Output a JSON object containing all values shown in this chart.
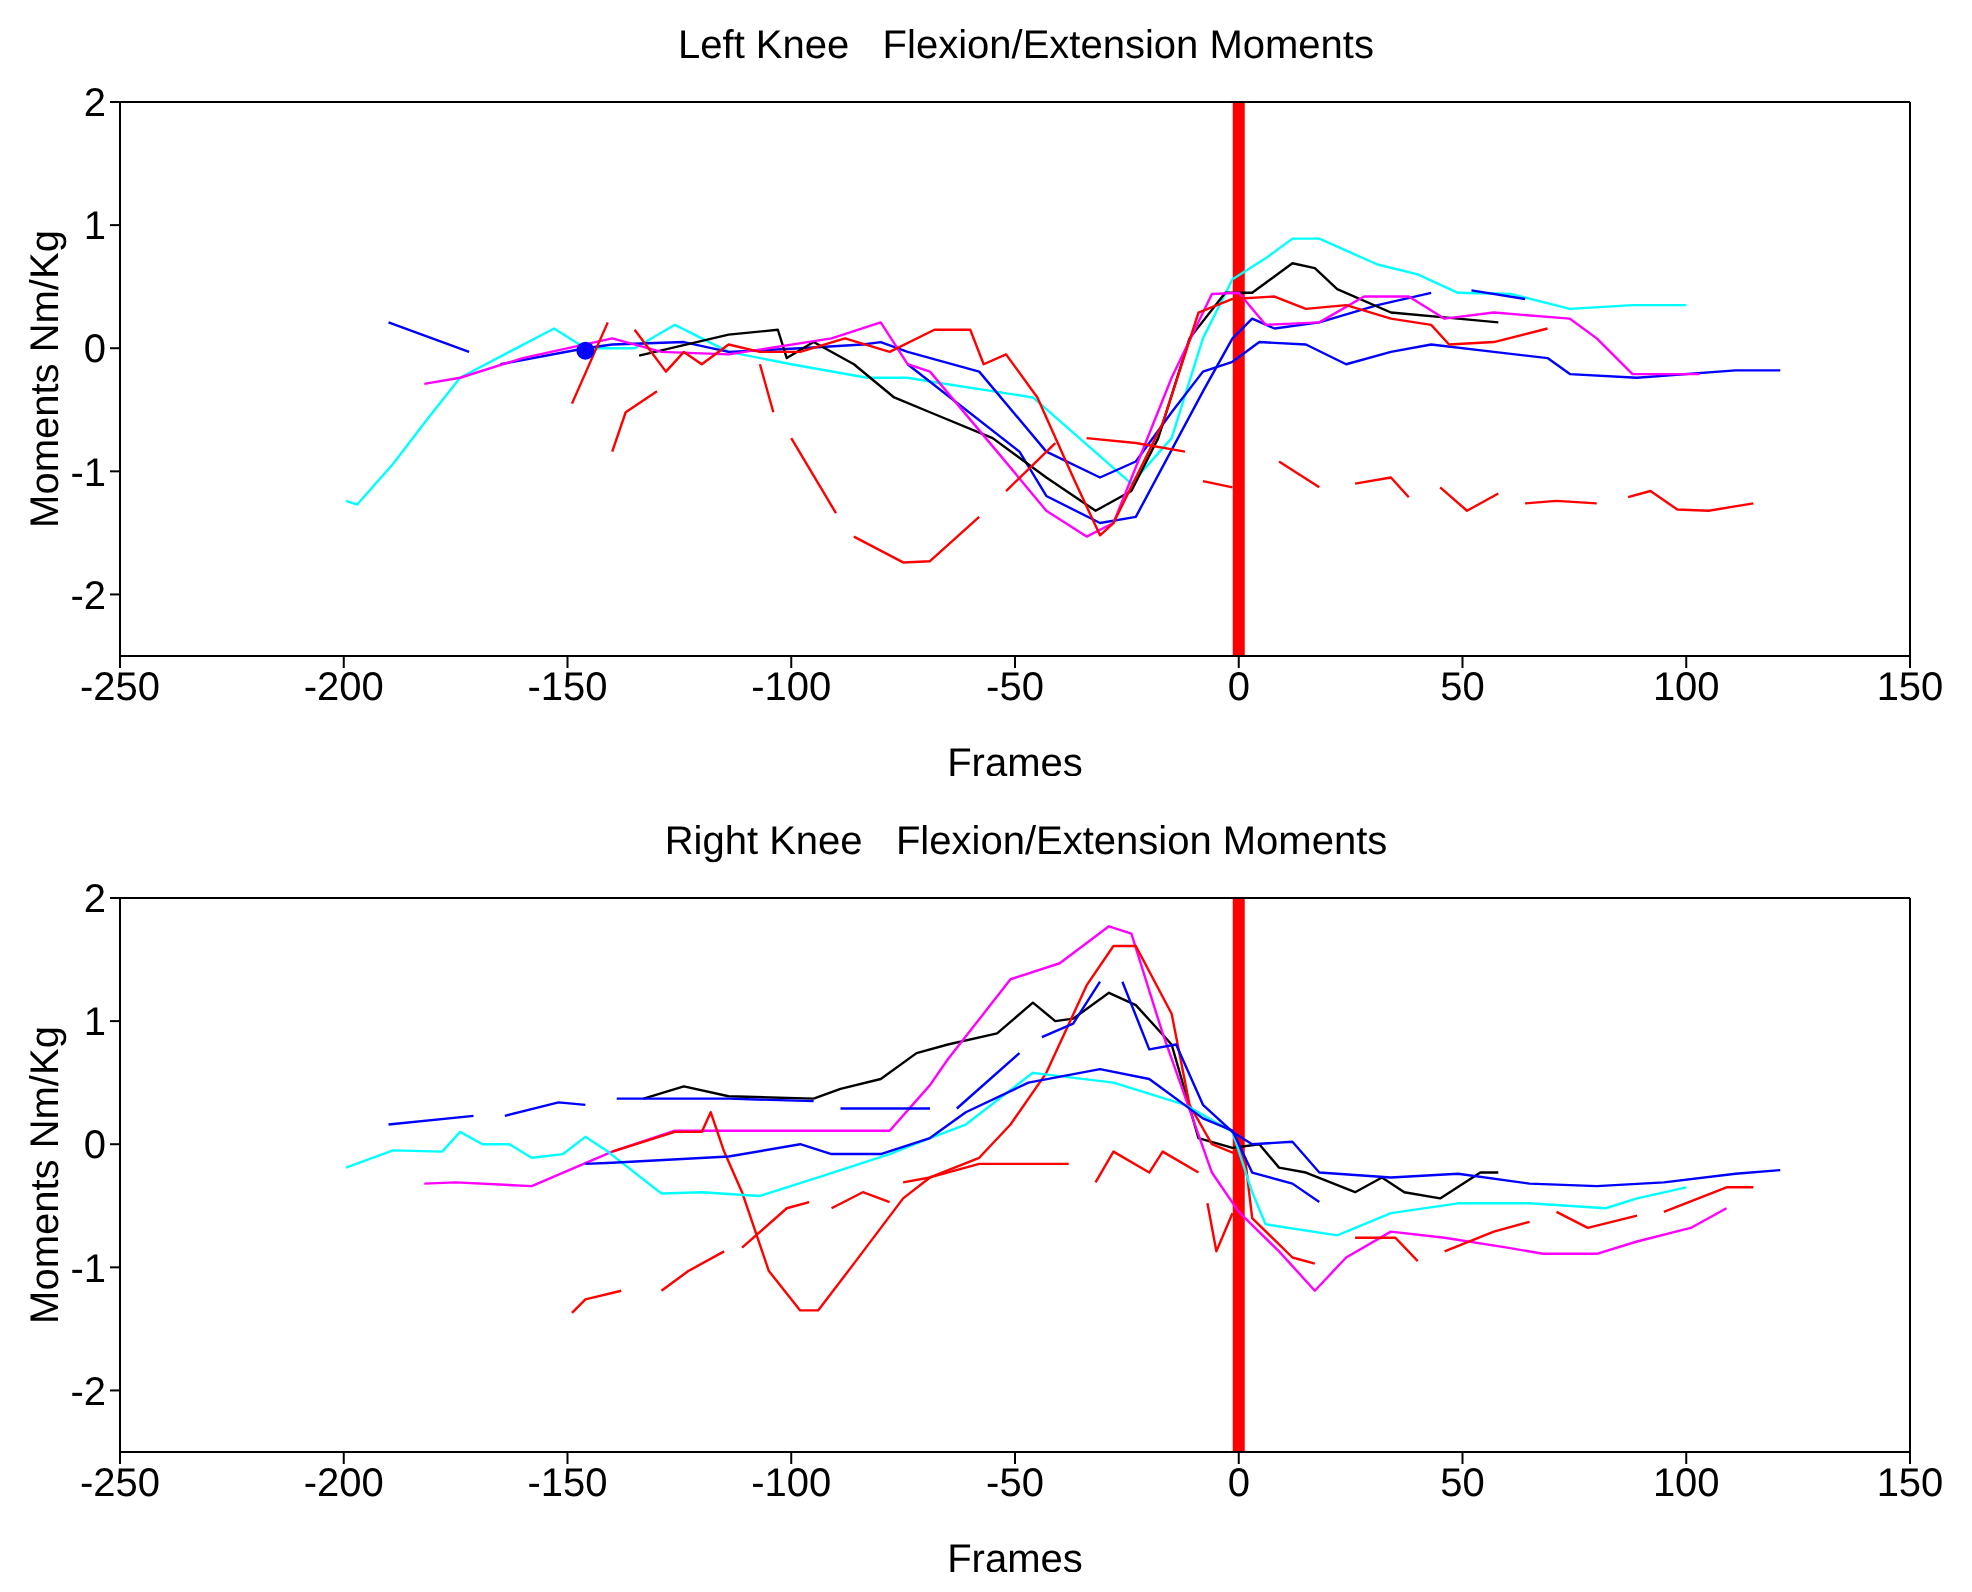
{
  "chart_data": [
    {
      "type": "line",
      "title": "Left Knee   Flexion/Extension Moments",
      "xlabel": "Frames",
      "ylabel": "Moments Nm/Kg",
      "xlim": [
        -250,
        150
      ],
      "xticks": [
        -250,
        -200,
        -150,
        -100,
        -50,
        0,
        50,
        100,
        150
      ],
      "ylim": [
        -2.5,
        2
      ],
      "yticks": [
        -2,
        -1,
        0,
        1,
        2
      ],
      "ref_lines": [
        {
          "axis": "x",
          "value": 0,
          "color": "#ff0000"
        }
      ],
      "series": [
        {
          "color": "#00ffff",
          "x": [
            -199.5,
            -197,
            -189,
            -181,
            -174,
            -163,
            -153,
            -146,
            -135,
            -126,
            -114,
            -100,
            -83,
            -74,
            -69,
            -46,
            -24,
            -15,
            -8,
            -1.4,
            6,
            12,
            18,
            31,
            40,
            49,
            61,
            74,
            88,
            100
          ],
          "values": [
            -1.24,
            -1.27,
            -0.94,
            -0.56,
            -0.24,
            -0.03,
            0.16,
            0,
            0,
            0.19,
            -0.03,
            -0.13,
            -0.24,
            -0.24,
            -0.27,
            -0.4,
            -1.1,
            -0.73,
            0.08,
            0.56,
            0.73,
            0.89,
            0.89,
            0.68,
            0.6,
            0.45,
            0.44,
            0.32,
            0.35,
            0.35
          ]
        },
        {
          "color": "#0000ff",
          "x": [
            -190,
            -172,
            -168.5,
            -165,
            -146,
            -140,
            -124,
            -114,
            -98,
            -84,
            -80,
            -74,
            -58,
            -43,
            -31,
            -23,
            -15,
            -8,
            -1.4,
            4.6,
            15,
            24,
            34,
            43,
            57,
            69,
            74,
            89,
            111,
            121
          ],
          "values": [
            0.21,
            -0.03,
            null,
            -0.13,
            0,
            0.03,
            0.05,
            -0.03,
            0,
            0.03,
            0.05,
            -0.03,
            -0.19,
            -0.84,
            -1.05,
            -0.92,
            -0.52,
            -0.19,
            -0.11,
            0.05,
            0.03,
            -0.13,
            -0.03,
            0.03,
            -0.03,
            -0.08,
            -0.21,
            -0.24,
            -0.18,
            -0.18
          ]
        },
        {
          "color": "#0000ff",
          "x": [
            -74,
            -49,
            -43,
            -31,
            -23,
            -8,
            -1.4,
            3,
            8,
            18,
            31,
            43,
            48,
            52,
            64
          ],
          "values": [
            -0.13,
            -0.84,
            -1.2,
            -1.42,
            -1.37,
            -0.35,
            0.08,
            0.24,
            0.16,
            0.21,
            0.35,
            0.45,
            null,
            0.47,
            0.4
          ]
        },
        {
          "color": "#000000",
          "x": [
            -134,
            -114,
            -103,
            -101,
            -95,
            -86,
            -77,
            -69,
            -55,
            -43,
            -32,
            -24,
            -18,
            -11,
            -3,
            3,
            12,
            17,
            22,
            34,
            49,
            58
          ],
          "values": [
            -0.06,
            0.11,
            0.15,
            -0.08,
            0.05,
            -0.13,
            -0.4,
            -0.52,
            -0.73,
            -1.05,
            -1.32,
            -1.16,
            -0.73,
            0.08,
            0.45,
            0.45,
            0.69,
            0.65,
            0.48,
            0.29,
            0.24,
            0.21
          ]
        },
        {
          "color": "#ff00ff",
          "x": [
            -182,
            -174,
            -160,
            -140,
            -129,
            -114,
            -91,
            -80,
            -74,
            -69,
            -54,
            -43,
            -34,
            -28,
            -15,
            -6,
            0,
            6,
            18,
            28,
            38,
            46,
            57,
            74,
            80,
            88,
            103
          ],
          "values": [
            -0.29,
            -0.24,
            -0.08,
            0.08,
            -0.03,
            -0.05,
            0.08,
            0.21,
            -0.13,
            -0.19,
            -0.84,
            -1.32,
            -1.53,
            -1.42,
            -0.24,
            0.44,
            0.45,
            0.19,
            0.21,
            0.42,
            0.42,
            0.24,
            0.29,
            0.24,
            0.08,
            -0.21,
            -0.21
          ]
        },
        {
          "color": "#ff0000",
          "x": [
            -135,
            -128,
            -124,
            -120,
            -114,
            -107,
            -98,
            -88,
            -78,
            -68,
            -60,
            -57,
            -52,
            -45,
            -37,
            -31,
            -28,
            -17,
            -9,
            -1.4,
            8,
            15,
            24,
            34,
            43,
            47,
            57,
            69
          ],
          "values": [
            0.15,
            -0.19,
            -0.03,
            -0.13,
            0.03,
            -0.03,
            -0.03,
            0.08,
            -0.03,
            0.15,
            0.15,
            -0.13,
            -0.05,
            -0.4,
            -1.05,
            -1.52,
            -1.42,
            -0.61,
            0.29,
            0.4,
            0.42,
            0.32,
            0.35,
            0.24,
            0.19,
            0.03,
            0.05,
            0.16
          ]
        },
        {
          "color": "#ff0000",
          "x": [
            -149,
            -141,
            -140.5,
            -140,
            -137,
            -130,
            -115,
            -107,
            -104,
            -102,
            -100,
            -90,
            -88,
            -86,
            -75,
            -69,
            -58,
            -55,
            -52,
            -41,
            -38,
            -34,
            -23,
            -12,
            -10,
            -8,
            -1.4,
            4,
            9,
            18,
            22,
            26,
            34,
            38,
            42,
            45,
            51,
            58,
            61,
            64,
            71,
            80,
            84,
            87,
            92,
            98,
            105,
            115
          ],
          "values": [
            -0.45,
            0.21,
            null,
            -0.84,
            -0.52,
            -0.35,
            null,
            -0.13,
            -0.52,
            null,
            -0.73,
            -1.34,
            null,
            -1.53,
            -1.74,
            -1.73,
            -1.37,
            null,
            -1.16,
            -0.77,
            null,
            -0.73,
            -0.77,
            -0.84,
            null,
            -1.08,
            -1.13,
            null,
            -0.92,
            -1.13,
            null,
            -1.1,
            -1.05,
            -1.21,
            null,
            -1.13,
            -1.32,
            -1.18,
            null,
            -1.26,
            -1.24,
            -1.26,
            null,
            -1.21,
            -1.16,
            -1.31,
            -1.32,
            -1.26
          ]
        },
        {
          "type": "scatter",
          "color": "#0000ff",
          "x": [
            -146
          ],
          "values": [
            -0.02
          ]
        }
      ]
    },
    {
      "type": "line",
      "title": "Right Knee   Flexion/Extension Moments",
      "xlabel": "Frames",
      "ylabel": "Moments Nm/Kg",
      "xlim": [
        -250,
        150
      ],
      "xticks": [
        -250,
        -200,
        -150,
        -100,
        -50,
        0,
        50,
        100,
        150
      ],
      "ylim": [
        -2.5,
        2
      ],
      "yticks": [
        -2,
        -1,
        0,
        1,
        2
      ],
      "ref_lines": [
        {
          "axis": "x",
          "value": 0,
          "color": "#ff0000"
        }
      ],
      "series": [
        {
          "color": "#000000",
          "x": [
            -133,
            -124,
            -114,
            -95,
            -89,
            -80,
            -72,
            -65,
            -54,
            -46,
            -41,
            -37,
            -29,
            -23,
            -15,
            -9,
            -1.4,
            4.6,
            9,
            15,
            26,
            32,
            37,
            45,
            54,
            58
          ],
          "values": [
            0.37,
            0.47,
            0.39,
            0.37,
            0.45,
            0.53,
            0.74,
            0.81,
            0.9,
            1.15,
            1.0,
            1.02,
            1.23,
            1.13,
            0.81,
            0.05,
            -0.03,
            0,
            -0.19,
            -0.23,
            -0.39,
            -0.27,
            -0.39,
            -0.44,
            -0.23,
            -0.23
          ]
        },
        {
          "color": "#ff00ff",
          "x": [
            -182,
            -175,
            -158,
            -140,
            -126,
            -94,
            -78,
            -69,
            -65,
            -51,
            -40,
            -29,
            -24,
            -17,
            -6,
            0,
            9,
            17,
            24,
            34,
            46,
            60,
            68,
            80,
            89,
            101,
            109
          ],
          "values": [
            -0.32,
            -0.31,
            -0.34,
            -0.06,
            0.11,
            0.11,
            0.11,
            0.48,
            0.69,
            1.34,
            1.47,
            1.77,
            1.71,
            0.9,
            -0.23,
            -0.55,
            -0.87,
            -1.19,
            -0.92,
            -0.71,
            -0.76,
            -0.84,
            -0.89,
            -0.89,
            -0.79,
            -0.68,
            -0.52
          ]
        },
        {
          "color": "#ff0000",
          "x": [
            -140,
            -126,
            -120,
            -118,
            -115,
            -111,
            -105,
            -98,
            -94,
            -86,
            -75,
            -69,
            -58,
            -51,
            -43,
            -34,
            -28,
            -23,
            -15,
            -11,
            -6,
            1.4,
            3,
            12,
            17
          ],
          "values": [
            -0.06,
            0.1,
            0.1,
            0.26,
            -0.06,
            -0.39,
            -1.03,
            -1.35,
            -1.35,
            -0.97,
            -0.44,
            -0.27,
            -0.11,
            0.16,
            0.58,
            1.29,
            1.61,
            1.61,
            1.06,
            0.32,
            0,
            -0.11,
            -0.6,
            -0.92,
            -0.97
          ]
        },
        {
          "color": "#ff0000",
          "x": [
            -149,
            -146,
            -138,
            -133,
            -129,
            -123,
            -115,
            -113,
            -111,
            -101,
            -96,
            -93,
            -91,
            -84,
            -78,
            -76,
            -75,
            -69,
            -58,
            -52,
            -38,
            -35,
            -32,
            -28,
            -20,
            -17,
            -9,
            -8,
            -7,
            -5,
            -1.4,
            12,
            26,
            35,
            40,
            43,
            46,
            57,
            65,
            68,
            71,
            78,
            89,
            92,
            95,
            109,
            115
          ],
          "values": [
            -1.37,
            -1.26,
            -1.19,
            null,
            -1.19,
            -1.03,
            -0.87,
            null,
            -0.84,
            -0.52,
            -0.47,
            null,
            -0.52,
            -0.39,
            -0.47,
            null,
            -0.31,
            -0.27,
            -0.16,
            -0.16,
            -0.16,
            null,
            -0.31,
            -0.06,
            -0.23,
            -0.06,
            -0.23,
            null,
            -0.48,
            -0.87,
            -0.56,
            null,
            -0.76,
            -0.76,
            -0.95,
            null,
            -0.87,
            -0.71,
            -0.63,
            null,
            -0.55,
            -0.68,
            -0.58,
            null,
            -0.55,
            -0.35,
            -0.35
          ]
        },
        {
          "color": "#00ffff",
          "x": [
            -199.5,
            -189,
            -178,
            -174,
            -169,
            -163,
            -158,
            -151,
            -146,
            -141,
            -129,
            -120,
            -107,
            -94,
            -78,
            -69,
            -61,
            -46,
            -28,
            -12,
            -1.4,
            3,
            6,
            22,
            34,
            49,
            65,
            82,
            89,
            100
          ],
          "values": [
            -0.19,
            -0.05,
            -0.06,
            0.1,
            0,
            0,
            -0.11,
            -0.08,
            0.06,
            -0.06,
            -0.4,
            -0.39,
            -0.42,
            -0.27,
            -0.08,
            0.05,
            0.16,
            0.58,
            0.5,
            0.32,
            0.1,
            -0.39,
            -0.65,
            -0.74,
            -0.56,
            -0.48,
            -0.48,
            -0.52,
            -0.44,
            -0.35
          ]
        },
        {
          "color": "#0000ff",
          "x": [
            -146,
            -140,
            -114,
            -98,
            -91,
            -80,
            -69,
            -61,
            -47,
            -31,
            -20,
            -8,
            -1.4,
            3,
            12,
            18
          ],
          "values": [
            -0.16,
            -0.15,
            -0.1,
            0,
            -0.08,
            -0.08,
            0.05,
            0.26,
            0.5,
            0.61,
            0.53,
            0.21,
            0.11,
            -0.23,
            -0.32,
            -0.47
          ]
        },
        {
          "color": "#0000ff",
          "x": [
            -190,
            -171,
            -167,
            -164,
            -152,
            -146,
            -142,
            -139,
            -121,
            -114,
            -95,
            -92,
            -89,
            -69,
            -66,
            -63,
            -49,
            -46,
            -44,
            -37,
            -31,
            -28,
            -26,
            -20,
            -14,
            -8,
            -1.4,
            3,
            12,
            18,
            34,
            49,
            65,
            80,
            95,
            111,
            121
          ],
          "values": [
            0.16,
            0.23,
            null,
            0.23,
            0.34,
            0.32,
            null,
            0.37,
            0.37,
            0.37,
            0.35,
            null,
            0.29,
            0.29,
            null,
            0.29,
            0.74,
            null,
            0.87,
            0.98,
            1.32,
            null,
            1.32,
            0.77,
            0.81,
            0.32,
            0.1,
            0,
            0.02,
            -0.23,
            -0.27,
            -0.24,
            -0.32,
            -0.34,
            -0.31,
            -0.24,
            -0.21
          ]
        }
      ]
    }
  ]
}
